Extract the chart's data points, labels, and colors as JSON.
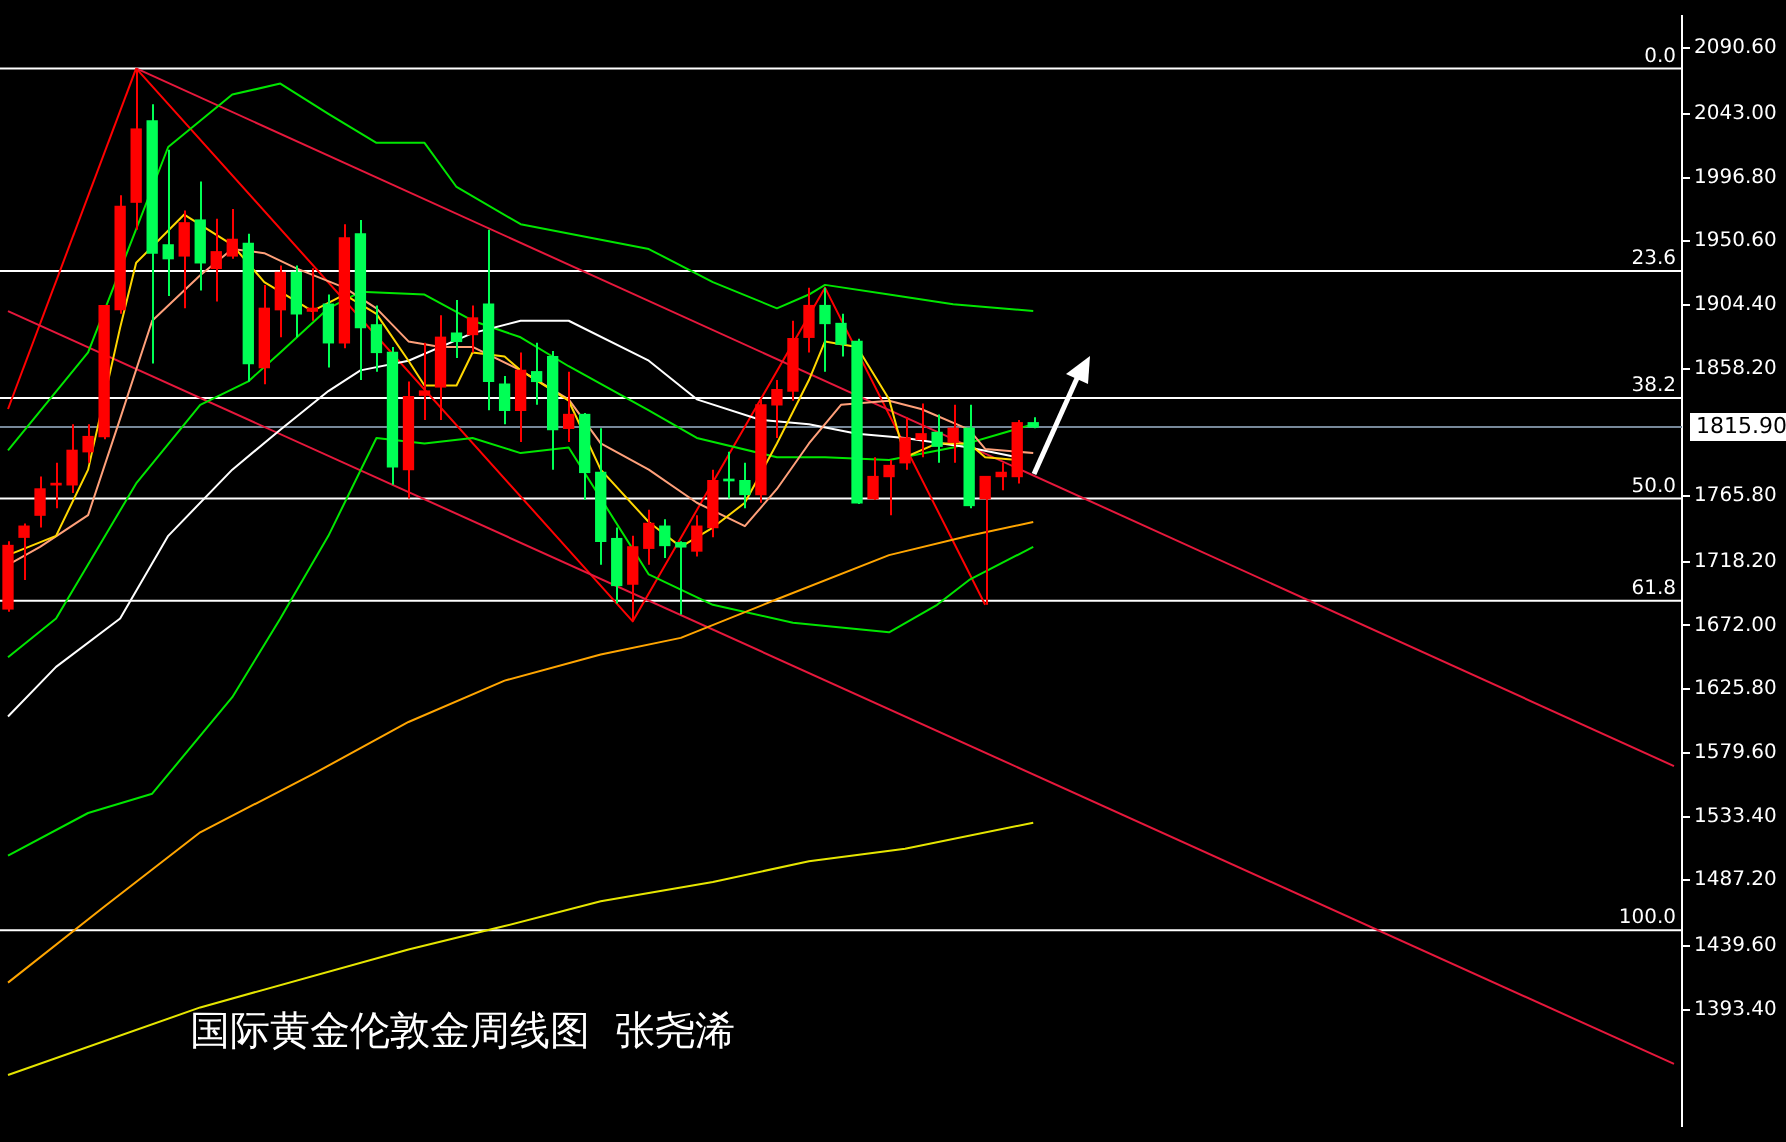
{
  "chart_data": {
    "type": "candlestick",
    "annotations": [
      "国际黄金伦敦金周线图  张尧浠",
      {
        "text": "0.0",
        "y": 2076
      },
      {
        "text": "23.6",
        "y": 1929
      },
      {
        "text": "38.2",
        "y": 1837
      },
      {
        "text": "50.0",
        "y": 1764
      },
      {
        "text": "61.8",
        "y": 1690
      },
      {
        "text": "100.0",
        "y": 1451
      }
    ],
    "categories": [
      null,
      null,
      null,
      null,
      null,
      null,
      null,
      null,
      null,
      null,
      null,
      null,
      null,
      null,
      null,
      null,
      null,
      null,
      null,
      null,
      null,
      null,
      null,
      null,
      null,
      null,
      null,
      null,
      null,
      null,
      null,
      null,
      null,
      null,
      null,
      null,
      null,
      null,
      null,
      null,
      null,
      null,
      null,
      null,
      null,
      null,
      null,
      null,
      null,
      null,
      null,
      null,
      null,
      null,
      null,
      null,
      null,
      null,
      null,
      null,
      null,
      null,
      null,
      null,
      null,
      null,
      null,
      null,
      null,
      null,
      null,
      null,
      null,
      null,
      null,
      null,
      null,
      null,
      null,
      null,
      null,
      null,
      null,
      null,
      null,
      null,
      null,
      null,
      null,
      null,
      null,
      null,
      null,
      null,
      null,
      null,
      null,
      null,
      null,
      null,
      null,
      null,
      null,
      null,
      null
    ],
    "ohlc": [
      [
        1684,
        1733,
        1682,
        1730
      ],
      [
        1736,
        1746,
        1705,
        1744
      ],
      [
        1752,
        1780,
        1743,
        1771
      ],
      [
        1774,
        1790,
        1757,
        1775
      ],
      [
        1774,
        1818,
        1768,
        1799
      ],
      [
        1798,
        1818,
        1790,
        1809
      ],
      [
        1809,
        1904,
        1807,
        1904
      ],
      [
        1901,
        1984,
        1898,
        1976
      ],
      [
        1979,
        2076,
        1959,
        2032
      ],
      [
        2038,
        2050,
        1862,
        1942
      ],
      [
        1948,
        2017,
        1911,
        1938
      ],
      [
        1940,
        1973,
        1902,
        1964
      ],
      [
        1966,
        1994,
        1915,
        1935
      ],
      [
        1931,
        1967,
        1907,
        1943
      ],
      [
        1940,
        1974,
        1938,
        1952
      ],
      [
        1949,
        1956,
        1849,
        1862
      ],
      [
        1859,
        1919,
        1847,
        1902
      ],
      [
        1901,
        1933,
        1881,
        1928
      ],
      [
        1928,
        1933,
        1881,
        1898
      ],
      [
        1900,
        1931,
        1893,
        1902
      ],
      [
        1905,
        1912,
        1859,
        1877
      ],
      [
        1877,
        1963,
        1873,
        1953
      ],
      [
        1956,
        1966,
        1850,
        1888
      ],
      [
        1890,
        1904,
        1856,
        1870
      ],
      [
        1870,
        1874,
        1774,
        1787
      ],
      [
        1785,
        1849,
        1764,
        1838
      ],
      [
        1839,
        1877,
        1821,
        1842
      ],
      [
        1845,
        1897,
        1821,
        1881
      ],
      [
        1884,
        1908,
        1866,
        1878
      ],
      [
        1883,
        1904,
        1870,
        1895
      ],
      [
        1905,
        1959,
        1828,
        1849
      ],
      [
        1847,
        1853,
        1818,
        1828
      ],
      [
        1828,
        1870,
        1805,
        1857
      ],
      [
        1856,
        1877,
        1832,
        1849
      ],
      [
        1867,
        1871,
        1785,
        1814
      ],
      [
        1815,
        1856,
        1805,
        1825
      ],
      [
        1825,
        1826,
        1763,
        1783
      ],
      [
        1783,
        1815,
        1716,
        1733
      ],
      [
        1735,
        1743,
        1688,
        1701
      ],
      [
        1702,
        1737,
        1675,
        1729
      ],
      [
        1728,
        1756,
        1716,
        1746
      ],
      [
        1744,
        1749,
        1721,
        1730
      ],
      [
        1732,
        1733,
        1680,
        1729
      ],
      [
        1726,
        1752,
        1722,
        1744
      ],
      [
        1743,
        1785,
        1736,
        1777
      ],
      [
        1778,
        1798,
        1764,
        1777
      ],
      [
        1777,
        1790,
        1757,
        1767
      ],
      [
        1767,
        1836,
        1761,
        1832
      ],
      [
        1832,
        1850,
        1808,
        1843
      ],
      [
        1842,
        1893,
        1835,
        1880
      ],
      [
        1881,
        1917,
        1870,
        1904
      ],
      [
        1904,
        1917,
        1856,
        1891
      ],
      [
        1891,
        1898,
        1867,
        1876
      ],
      [
        1878,
        1880,
        1760,
        1761
      ],
      [
        1764,
        1794,
        1763,
        1780
      ],
      [
        1780,
        1792,
        1752,
        1788
      ],
      [
        1790,
        1823,
        1785,
        1808
      ],
      [
        1807,
        1833,
        1794,
        1811
      ],
      [
        1812,
        1825,
        1790,
        1802
      ],
      [
        1805,
        1832,
        1790,
        1815
      ],
      [
        1815,
        1832,
        1757,
        1759
      ],
      [
        1764,
        1780,
        1687,
        1780
      ],
      [
        1780,
        1790,
        1770,
        1783
      ],
      [
        1780,
        1821,
        1775,
        1819
      ],
      [
        1819,
        1823,
        1815,
        1816
      ],
      null,
      null,
      null,
      null,
      null,
      null,
      null,
      null,
      null,
      null,
      null,
      null,
      null,
      null,
      null,
      null,
      null,
      null,
      null,
      null,
      null,
      null,
      null,
      null,
      null,
      null,
      null,
      null,
      null,
      null,
      null,
      null,
      null,
      null,
      null,
      null,
      null,
      null,
      null,
      null
    ],
    "colors": [
      "#ff0000",
      "#ff0000",
      "#ff0000",
      "#ff0000",
      "#ff0000",
      "#ff0000",
      "#ff0000",
      "#ff0000",
      "#ff0000",
      "#00ff55",
      "#00ff55",
      "#ff0000",
      "#00ff55",
      "#ff0000",
      "#ff0000",
      "#00ff55",
      "#ff0000",
      "#ff0000",
      "#00ff55",
      "#ff0000",
      "#00ff55",
      "#ff0000",
      "#00ff55",
      "#00ff55",
      "#00ff55",
      "#ff0000",
      "#ff0000",
      "#ff0000",
      "#00ff55",
      "#ff0000",
      "#00ff55",
      "#00ff55",
      "#ff0000",
      "#00ff55",
      "#00ff55",
      "#ff0000",
      "#00ff55",
      "#00ff55",
      "#00ff55",
      "#ff0000",
      "#ff0000",
      "#00ff55",
      "#00ff55",
      "#ff0000",
      "#ff0000",
      "#00ff55",
      "#00ff55",
      "#ff0000",
      "#ff0000",
      "#ff0000",
      "#ff0000",
      "#00ff55",
      "#00ff55",
      "#00ff55",
      "#ff0000",
      "#ff0000",
      "#ff0000",
      "#ff0000",
      "#00ff55",
      "#ff0000",
      "#00ff55",
      "#ff0000",
      "#ff0000",
      "#ff0000",
      "#00ff55",
      null,
      null,
      null,
      null,
      null,
      null,
      null,
      null,
      null,
      null,
      null,
      null,
      null,
      null,
      null,
      null,
      null,
      null,
      null,
      null,
      null,
      null,
      null,
      null,
      null,
      null,
      null,
      null,
      null,
      null,
      null,
      null,
      null,
      null,
      null,
      null,
      null,
      null,
      null,
      null
    ],
    "series": [
      {
        "type": "line",
        "color": "#ffd700",
        "values": [
          1723,
          null,
          null,
          1737,
          null,
          1785,
          null,
          1888,
          1935,
          null,
          null,
          1970,
          null,
          null,
          1948,
          null,
          1921,
          null,
          1907,
          1900,
          null,
          1912,
          null,
          1898,
          null,
          1864,
          1846,
          null,
          1846,
          1870,
          null,
          1867,
          1857,
          null,
          null,
          1835,
          null,
          1785,
          null,
          null,
          1747,
          null,
          1729,
          null,
          1743,
          null,
          1761,
          null,
          1804,
          null,
          1850,
          1878,
          null,
          1874,
          null,
          1836,
          1794,
          null,
          1804,
          null,
          1804,
          1794,
          null,
          1792,
          null,
          null,
          null,
          null,
          null,
          null,
          null,
          null,
          null,
          null,
          null,
          null,
          null,
          null,
          null,
          null,
          null,
          null,
          null,
          null,
          null,
          null,
          null,
          null,
          null,
          null,
          null,
          null,
          null,
          null,
          null,
          null,
          null,
          null,
          null,
          null,
          null,
          null,
          null,
          null,
          null
        ]
      },
      {
        "type": "line",
        "color": "#ffa07a",
        "values": [
          1716,
          null,
          1729,
          null,
          null,
          1752,
          null,
          1822,
          null,
          1893,
          null,
          null,
          1926,
          null,
          1945,
          null,
          1942,
          null,
          1931,
          null,
          null,
          1917,
          null,
          1902,
          null,
          1878,
          null,
          1874,
          null,
          1874,
          null,
          null,
          1857,
          null,
          null,
          1836,
          null,
          1804,
          null,
          null,
          1785,
          null,
          null,
          1761,
          null,
          null,
          1744,
          null,
          1771,
          null,
          1804,
          null,
          1832,
          null,
          null,
          1835,
          null,
          1829,
          null,
          null,
          1814,
          1800,
          null,
          null,
          1797,
          null,
          null,
          null,
          null,
          null,
          null,
          null,
          null,
          null,
          null,
          null,
          null,
          null,
          null,
          null,
          null,
          null,
          null,
          null,
          null,
          null,
          null,
          null,
          null,
          null,
          null,
          null,
          null,
          null,
          null,
          null,
          null,
          null,
          null,
          null,
          null,
          null,
          null,
          null,
          null
        ]
      },
      {
        "type": "line",
        "color": "#ffffff",
        "values": [
          1606,
          null,
          null,
          1642,
          null,
          null,
          null,
          1677,
          null,
          null,
          1737,
          null,
          null,
          null,
          1785,
          null,
          null,
          1814,
          null,
          null,
          1842,
          null,
          1857,
          null,
          null,
          1864,
          null,
          null,
          null,
          1884,
          null,
          null,
          1893,
          null,
          null,
          1893,
          null,
          null,
          null,
          null,
          1864,
          null,
          null,
          1836,
          null,
          null,
          null,
          1821,
          null,
          null,
          1818,
          null,
          null,
          1811,
          null,
          null,
          1808,
          null,
          null,
          null,
          1801,
          null,
          null,
          1794,
          null,
          null,
          null,
          null,
          null,
          null,
          null,
          null,
          null,
          null,
          null,
          null,
          null,
          null,
          null,
          null,
          null,
          null,
          null,
          null,
          null,
          null,
          null,
          null,
          null,
          null,
          null,
          null,
          null,
          null,
          null,
          null,
          null,
          null,
          null,
          null,
          null,
          null,
          null,
          null,
          null
        ]
      },
      {
        "type": "line",
        "color": "#ffa500",
        "values": [
          1413,
          null,
          null,
          null,
          null,
          null,
          1468,
          null,
          null,
          null,
          null,
          null,
          1522,
          null,
          null,
          null,
          null,
          null,
          null,
          1564,
          null,
          null,
          null,
          null,
          null,
          1602,
          null,
          null,
          null,
          null,
          null,
          1632,
          null,
          null,
          null,
          null,
          null,
          1651,
          null,
          null,
          null,
          null,
          1663,
          null,
          null,
          null,
          null,
          null,
          1691,
          null,
          null,
          null,
          null,
          null,
          null,
          1723,
          null,
          null,
          null,
          null,
          1737,
          null,
          null,
          null,
          1747,
          null,
          null,
          null,
          null,
          null,
          null,
          null,
          null,
          null,
          null,
          null,
          null,
          null,
          null,
          null,
          null,
          null,
          null,
          null,
          null,
          null,
          null,
          null,
          null,
          null,
          null,
          null,
          null,
          null,
          null,
          null,
          null,
          null,
          null,
          null,
          null,
          null,
          null,
          null,
          null
        ]
      },
      {
        "type": "line",
        "color": "#e6e600",
        "values": [
          1346,
          null,
          null,
          null,
          null,
          null,
          null,
          null,
          null,
          null,
          null,
          null,
          1395,
          null,
          null,
          null,
          null,
          null,
          null,
          null,
          null,
          null,
          null,
          null,
          null,
          1437,
          null,
          null,
          null,
          null,
          null,
          1454,
          null,
          null,
          null,
          null,
          null,
          1472,
          null,
          null,
          null,
          null,
          null,
          null,
          1486,
          null,
          null,
          null,
          null,
          null,
          1501,
          null,
          null,
          null,
          null,
          null,
          1510,
          null,
          null,
          null,
          null,
          null,
          null,
          null,
          1529,
          null,
          null,
          null,
          null,
          null,
          null,
          null,
          null,
          null,
          null,
          null,
          null,
          null,
          null,
          null,
          null,
          null,
          null,
          null,
          null,
          null,
          null,
          null,
          null,
          null,
          null,
          null,
          null,
          null,
          null,
          null,
          null,
          null,
          null,
          null,
          null,
          null,
          null,
          null,
          null
        ]
      },
      {
        "type": "line",
        "color": "#00e600",
        "values": [
          1799,
          null,
          null,
          null,
          null,
          1870,
          null,
          null,
          null,
          null,
          2019,
          null,
          null,
          null,
          2057,
          null,
          null,
          2065,
          null,
          null,
          2043,
          null,
          null,
          2022,
          null,
          null,
          2022,
          null,
          1990,
          null,
          null,
          null,
          1963,
          null,
          null,
          null,
          null,
          null,
          null,
          null,
          1945,
          null,
          null,
          null,
          1921,
          null,
          null,
          null,
          1902,
          null,
          1912,
          1919,
          null,
          null,
          null,
          1912,
          null,
          null,
          null,
          1905,
          null,
          null,
          null,
          null,
          1900,
          null,
          null,
          null,
          null,
          null,
          null,
          null,
          null,
          null,
          null,
          null,
          null,
          null,
          null,
          null,
          null,
          null,
          null,
          null,
          null,
          null,
          null,
          null,
          null,
          null,
          null,
          null,
          null,
          null,
          null,
          null,
          null,
          null,
          null,
          null,
          null,
          null,
          null,
          null,
          null
        ]
      },
      {
        "type": "line",
        "color": "#00e600",
        "values": [
          1649,
          null,
          null,
          1677,
          null,
          null,
          null,
          null,
          1775,
          null,
          null,
          null,
          1832,
          null,
          null,
          1849,
          null,
          1870,
          null,
          null,
          1902,
          null,
          1914,
          null,
          null,
          null,
          1912,
          null,
          null,
          1893,
          null,
          null,
          1881,
          null,
          null,
          1860,
          null,
          null,
          null,
          null,
          1828,
          null,
          null,
          1808,
          null,
          null,
          null,
          null,
          1794,
          null,
          null,
          1794,
          null,
          null,
          null,
          1792,
          null,
          null,
          null,
          1801,
          null,
          null,
          null,
          null,
          1818,
          null,
          null,
          null,
          null,
          null,
          null,
          null,
          null,
          null,
          null,
          null,
          null,
          null,
          null,
          null,
          null,
          null,
          null,
          null,
          null,
          null,
          null,
          null,
          null,
          null,
          null,
          null,
          null,
          null,
          null,
          null,
          null,
          null,
          null,
          null,
          null,
          null,
          null,
          null,
          null
        ]
      },
      {
        "type": "line",
        "color": "#00e600",
        "values": [
          1505,
          null,
          null,
          null,
          null,
          1536,
          null,
          null,
          null,
          1550,
          null,
          null,
          null,
          null,
          1620,
          null,
          null,
          1677,
          null,
          null,
          1737,
          null,
          null,
          1808,
          null,
          null,
          1804,
          null,
          null,
          1808,
          null,
          null,
          1797,
          null,
          null,
          1801,
          null,
          null,
          null,
          null,
          1709,
          null,
          null,
          null,
          1687,
          null,
          null,
          null,
          null,
          1674,
          null,
          null,
          null,
          null,
          null,
          1667,
          null,
          null,
          1687,
          null,
          1705,
          null,
          null,
          null,
          1729,
          null,
          null,
          null,
          null,
          null,
          null,
          null,
          null,
          null,
          null,
          null,
          null,
          null,
          null,
          null,
          null,
          null,
          null,
          null,
          null,
          null,
          null,
          null,
          null,
          null,
          null,
          null,
          null,
          null,
          null,
          null,
          null,
          null,
          null,
          null,
          null,
          null,
          null,
          null,
          null
        ]
      },
      {
        "type": "line",
        "color": "#e6183c",
        "values": [
          null,
          null,
          null,
          null,
          null,
          null,
          null,
          null,
          2076,
          null,
          null,
          null,
          null,
          null,
          null,
          null,
          null,
          null,
          null,
          null,
          null,
          null,
          null,
          null,
          null,
          null,
          null,
          null,
          null,
          null,
          null,
          null,
          null,
          null,
          null,
          null,
          null,
          null,
          null,
          null,
          null,
          null,
          null,
          null,
          null,
          null,
          null,
          null,
          null,
          null,
          null,
          null,
          null,
          null,
          null,
          null,
          null,
          null,
          null,
          null,
          null,
          null,
          null,
          null,
          null,
          null,
          null,
          null,
          null,
          null,
          null,
          null,
          null,
          null,
          null,
          null,
          null,
          null,
          null,
          null,
          null,
          null,
          null,
          null,
          null,
          null,
          null,
          null,
          null,
          null,
          null,
          null,
          null,
          null,
          null,
          null,
          null,
          null,
          null,
          null,
          null,
          null,
          null,
          null,
          1570
        ]
      },
      {
        "type": "line",
        "color": "#e6183c",
        "values": [
          1900,
          null,
          null,
          null,
          null,
          null,
          null,
          null,
          null,
          null,
          null,
          null,
          null,
          null,
          null,
          null,
          null,
          null,
          null,
          null,
          null,
          null,
          null,
          null,
          null,
          null,
          null,
          null,
          null,
          null,
          null,
          null,
          null,
          null,
          null,
          null,
          null,
          null,
          null,
          null,
          null,
          null,
          null,
          null,
          null,
          null,
          null,
          null,
          null,
          null,
          null,
          null,
          null,
          null,
          null,
          null,
          null,
          null,
          null,
          null,
          null,
          null,
          null,
          null,
          null,
          null,
          null,
          null,
          null,
          null,
          null,
          null,
          null,
          null,
          null,
          null,
          null,
          null,
          null,
          null,
          null,
          null,
          null,
          null,
          null,
          null,
          null,
          null,
          null,
          null,
          null,
          null,
          null,
          null,
          null,
          null,
          null,
          null,
          null,
          null,
          null,
          null,
          null,
          null,
          1354
        ]
      },
      {
        "type": "line",
        "color": "#ff0000",
        "values": [
          1829,
          null,
          null,
          null,
          null,
          null,
          null,
          null,
          2076,
          null,
          null,
          null,
          null,
          null,
          null,
          null,
          null,
          null,
          null,
          null,
          null,
          null,
          null,
          null,
          null,
          null,
          null,
          null,
          null,
          null,
          null,
          null,
          null,
          null,
          null,
          null,
          null,
          null,
          null,
          null,
          null,
          null,
          null,
          null,
          null,
          null,
          null,
          null,
          null,
          null,
          null,
          null,
          null,
          null,
          null,
          null,
          null,
          null,
          null,
          null,
          null,
          null,
          null,
          null,
          null,
          null,
          null,
          null,
          null,
          null,
          null,
          null,
          null,
          null,
          null,
          null,
          null,
          null,
          null,
          null,
          null,
          null,
          null,
          null,
          null,
          null,
          null,
          null,
          null,
          null,
          null,
          null,
          null,
          null,
          null,
          null,
          null,
          null,
          null,
          null,
          null,
          null,
          null,
          null,
          null
        ]
      },
      {
        "type": "line",
        "color": "#ff0000",
        "values": [
          null,
          null,
          null,
          null,
          null,
          null,
          null,
          null,
          2076,
          null,
          null,
          null,
          null,
          null,
          null,
          null,
          null,
          null,
          null,
          null,
          null,
          null,
          null,
          null,
          null,
          null,
          null,
          null,
          null,
          null,
          null,
          null,
          null,
          null,
          null,
          null,
          null,
          null,
          null,
          1675,
          null,
          null,
          null,
          null,
          null,
          null,
          null,
          null,
          null,
          null,
          null,
          1917,
          null,
          null,
          null,
          null,
          null,
          null,
          null,
          null,
          null,
          1687,
          null,
          null,
          null,
          null,
          null,
          null,
          null,
          null,
          null,
          null,
          null,
          null,
          null,
          null,
          null,
          null,
          null,
          null,
          null,
          null,
          null,
          null,
          null,
          null,
          null,
          null,
          null,
          null,
          null,
          null,
          null,
          null,
          null,
          null,
          null,
          null,
          null,
          null,
          null,
          null,
          null,
          null,
          null
        ]
      }
    ],
    "ylim": [
      1309,
      2114
    ],
    "yticks": [
      {
        "value": 2090.6,
        "label": "2090.60"
      },
      {
        "value": 2043.0,
        "label": "2043.00"
      },
      {
        "value": 1996.8,
        "label": "1996.80"
      },
      {
        "value": 1950.6,
        "label": "1950.60"
      },
      {
        "value": 1904.4,
        "label": "1904.40"
      },
      {
        "value": 1858.2,
        "label": "1858.20"
      },
      {
        "value": 1765.8,
        "label": "1765.80"
      },
      {
        "value": 1718.2,
        "label": "1718.20"
      },
      {
        "value": 1672.0,
        "label": "1672.00"
      },
      {
        "value": 1625.8,
        "label": "1625.80"
      },
      {
        "value": 1579.6,
        "label": "1579.60"
      },
      {
        "value": 1533.4,
        "label": "1533.40"
      },
      {
        "value": 1487.2,
        "label": "1487.20"
      },
      {
        "value": 1439.6,
        "label": "1439.60"
      },
      {
        "value": 1393.4,
        "label": "1393.40"
      }
    ],
    "tick_labels": "y",
    "ref_lines": [
      {
        "axis": "y",
        "value": 2076,
        "color": "#ffffff"
      },
      {
        "axis": "y",
        "value": 1929,
        "color": "#ffffff"
      },
      {
        "axis": "y",
        "value": 1837,
        "color": "#ffffff"
      },
      {
        "axis": "y",
        "value": 1764,
        "color": "#ffffff"
      },
      {
        "axis": "y",
        "value": 1690,
        "color": "#ffffff"
      },
      {
        "axis": "y",
        "value": 1451,
        "color": "#ffffff"
      },
      {
        "axis": "y",
        "value": 1815.9,
        "label": "1815.90",
        "color": "#778899"
      }
    ]
  }
}
